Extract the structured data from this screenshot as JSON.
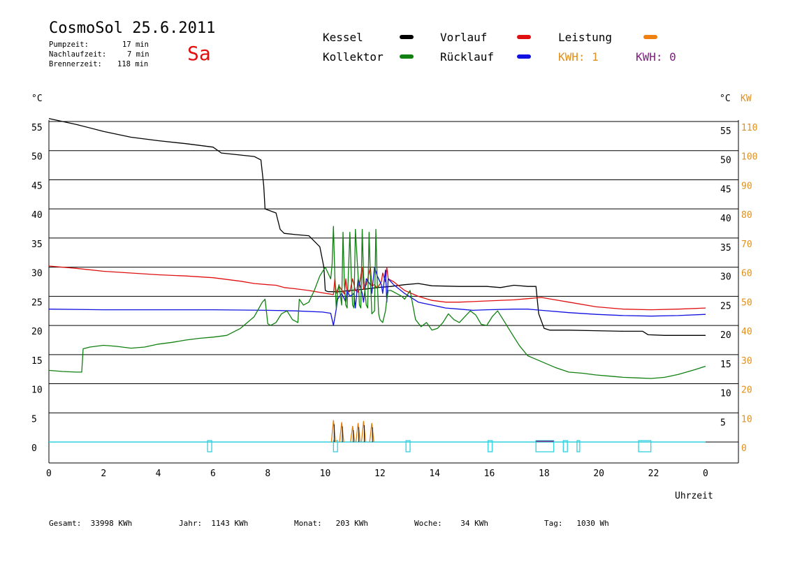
{
  "header": {
    "title": "CosmoSol 25.6.2011",
    "day": "Sa",
    "info": [
      {
        "label": "Pumpzeit:",
        "value": "17 min"
      },
      {
        "label": "Nachlaufzeit:",
        "value": "7 min"
      },
      {
        "label": "Brennerzeit:",
        "value": "118 min"
      }
    ]
  },
  "legend": {
    "kessel": {
      "label": "Kessel",
      "color": "#000000"
    },
    "vorlauf": {
      "label": "Vorlauf",
      "color": "#e01010"
    },
    "leistung": {
      "label": "Leistung",
      "color": "#f08010"
    },
    "kollektor": {
      "label": "Kollektor",
      "color": "#108010"
    },
    "ruecklauf": {
      "label": "Rücklauf",
      "color": "#1010e0"
    },
    "kwh1": {
      "label": "KWH: 1",
      "color": "#e09020"
    },
    "kwh2": {
      "label": "KWH: 0",
      "color": "#802080"
    }
  },
  "footer": {
    "gesamt": "Gesamt:  33998 KWh",
    "jahr": "Jahr:  1143 KWh",
    "monat": "Monat:   203 KWh",
    "woche": "Woche:    34 KWh",
    "tag": "Tag:   1030 Wh"
  },
  "chart_data": {
    "type": "line",
    "ylabel_left": "°C",
    "ylabel_right_c": "°C",
    "ylabel_right_kw": "KW",
    "xlabel": "Uhrzeit",
    "xlim": [
      0,
      24
    ],
    "ylim": [
      -3.5,
      55
    ],
    "x_ticks": [
      "0",
      "2",
      "4",
      "6",
      "8",
      "10",
      "12",
      "14",
      "16",
      "18",
      "20",
      "22",
      "0"
    ],
    "y_ticks_left": [
      0,
      5,
      10,
      15,
      20,
      25,
      30,
      35,
      40,
      45,
      50,
      55
    ],
    "y_ticks_right_c": [
      5,
      10,
      15,
      20,
      25,
      30,
      35,
      40,
      45,
      50,
      55
    ],
    "y_ticks_right_kw": [
      0,
      10,
      20,
      30,
      40,
      50,
      60,
      70,
      80,
      90,
      100,
      110
    ],
    "grid": true,
    "series": [
      {
        "name": "Kessel",
        "color": "#000000",
        "x": [
          0,
          1,
          2,
          3,
          4,
          5,
          6,
          6.3,
          7.5,
          7.75,
          7.85,
          7.9,
          8.3,
          8.45,
          8.6,
          9.0,
          9.5,
          9.9,
          10.05,
          10.1,
          10.2,
          10.4,
          10.6,
          11.0,
          11.5,
          12.0,
          12.5,
          13.0,
          13.5,
          14.0,
          15.0,
          16.0,
          16.5,
          17.0,
          17.5,
          17.8,
          17.9,
          18.1,
          18.3,
          19.0,
          20.0,
          21.0,
          21.7,
          21.9,
          22.5,
          23.0,
          24.0
        ],
        "y": [
          55.5,
          54.5,
          53.3,
          52.3,
          51.7,
          51.2,
          50.6,
          49.6,
          49.0,
          48.4,
          44,
          40,
          39.3,
          36.5,
          35.8,
          35.6,
          35.4,
          33.5,
          30,
          26,
          25.8,
          25.8,
          25.8,
          26.0,
          26.2,
          26.5,
          26.7,
          27.0,
          27.2,
          26.8,
          26.7,
          26.7,
          26.5,
          26.9,
          26.7,
          26.7,
          22,
          19.5,
          19.2,
          19.2,
          19.1,
          19.0,
          19.0,
          18.4,
          18.3,
          18.3,
          18.3
        ]
      },
      {
        "name": "Vorlauf",
        "color": "#e01010",
        "x": [
          0,
          1,
          2,
          3,
          4,
          5,
          6,
          7,
          7.5,
          8,
          8.3,
          8.6,
          9,
          9.5,
          10,
          10.4,
          10.45,
          10.5,
          10.6,
          10.8,
          10.85,
          10.9,
          11.0,
          11.1,
          11.2,
          11.3,
          11.45,
          11.5,
          11.6,
          11.75,
          11.8,
          11.9,
          12.0,
          12.15,
          12.2,
          12.3,
          12.35,
          12.4,
          12.6,
          13.0,
          13.5,
          14.0,
          14.5,
          15.0,
          15.5,
          16.0,
          17.0,
          17.5,
          18.0,
          18.5,
          19.0,
          20.0,
          21.0,
          22.0,
          23.0,
          24.0
        ],
        "y": [
          30.2,
          29.8,
          29.3,
          29.0,
          28.7,
          28.5,
          28.2,
          27.6,
          27.2,
          27.0,
          26.9,
          26.5,
          26.3,
          26.0,
          25.6,
          25.3,
          28,
          25.5,
          26.8,
          25.4,
          28,
          25.8,
          25.8,
          28,
          26.0,
          25.7,
          30,
          26.2,
          27,
          30,
          26.8,
          27,
          26.4,
          27.5,
          29,
          27.5,
          30,
          28,
          27.5,
          26.0,
          25.0,
          24.3,
          24.0,
          24.0,
          24.1,
          24.2,
          24.4,
          24.6,
          24.8,
          24.4,
          24.0,
          23.2,
          22.8,
          22.7,
          22.8,
          23.0
        ]
      },
      {
        "name": "Rücklauf",
        "color": "#1010e0",
        "x": [
          0,
          2,
          4,
          6,
          8,
          9,
          10,
          10.3,
          10.35,
          10.4,
          10.5,
          10.55,
          10.7,
          10.85,
          10.9,
          11.0,
          11.15,
          11.2,
          11.3,
          11.45,
          11.5,
          11.6,
          11.75,
          11.8,
          11.9,
          12.0,
          12.15,
          12.2,
          12.3,
          12.35,
          12.4,
          12.6,
          13.0,
          13.5,
          14.0,
          14.5,
          15.0,
          15.5,
          16.0,
          17.0,
          17.5,
          18.0,
          19.0,
          20.0,
          21.0,
          22.0,
          23.0,
          24.0
        ],
        "y": [
          22.8,
          22.7,
          22.7,
          22.7,
          22.6,
          22.5,
          22.3,
          22.1,
          21.0,
          20.0,
          22.8,
          24.5,
          25.5,
          24.0,
          26.0,
          25.0,
          25.5,
          23.0,
          28.0,
          25.5,
          24.0,
          28.0,
          27.0,
          25.5,
          30.0,
          28.5,
          27.0,
          25.5,
          29.5,
          24.0,
          28.0,
          27.0,
          25.5,
          24.0,
          23.5,
          23.0,
          22.8,
          22.6,
          22.7,
          22.8,
          22.8,
          22.6,
          22.2,
          21.9,
          21.7,
          21.6,
          21.7,
          21.9
        ]
      },
      {
        "name": "Kollektor",
        "color": "#108010",
        "x": [
          0,
          0.5,
          1.0,
          1.2,
          1.25,
          1.5,
          2.0,
          2.5,
          3.0,
          3.5,
          4.0,
          4.5,
          5.0,
          5.5,
          6.0,
          6.5,
          7.0,
          7.5,
          7.8,
          7.9,
          8.0,
          8.1,
          8.3,
          8.5,
          8.7,
          8.9,
          9.1,
          9.15,
          9.3,
          9.5,
          9.7,
          9.9,
          10.1,
          10.2,
          10.3,
          10.35,
          10.4,
          10.45,
          10.5,
          10.55,
          10.6,
          10.7,
          10.75,
          10.8,
          10.85,
          10.9,
          11.0,
          11.05,
          11.1,
          11.15,
          11.2,
          11.3,
          11.35,
          11.4,
          11.45,
          11.5,
          11.6,
          11.65,
          11.7,
          11.75,
          11.8,
          11.9,
          11.95,
          12.0,
          12.05,
          12.1,
          12.2,
          12.3,
          12.35,
          12.4,
          12.5,
          12.7,
          12.9,
          13.0,
          13.2,
          13.4,
          13.6,
          13.8,
          14.0,
          14.2,
          14.4,
          14.6,
          14.8,
          15.0,
          15.2,
          15.4,
          15.6,
          15.8,
          16.0,
          16.2,
          16.4,
          16.6,
          16.8,
          17.0,
          17.2,
          17.5,
          18.0,
          18.5,
          19.0,
          19.5,
          20.0,
          20.5,
          21.0,
          21.5,
          22.0,
          22.5,
          23.0,
          23.3,
          23.6,
          24.0
        ],
        "y": [
          12.3,
          12.1,
          12.0,
          12.0,
          16.0,
          16.3,
          16.6,
          16.4,
          16.1,
          16.3,
          16.8,
          17.1,
          17.5,
          17.8,
          18.0,
          18.3,
          19.5,
          21.5,
          24.0,
          24.5,
          20.3,
          20.0,
          20.5,
          22.0,
          22.5,
          21.0,
          20.5,
          24.5,
          23.5,
          24.0,
          26.0,
          28.5,
          30.0,
          29.0,
          28.0,
          30.5,
          37.0,
          28.5,
          23.0,
          25.5,
          27.0,
          23.5,
          36.0,
          27.0,
          23.5,
          23.0,
          36.0,
          28.5,
          23.5,
          23.0,
          36.5,
          28.5,
          23.5,
          23.0,
          36.5,
          28.5,
          23.5,
          23.0,
          36.0,
          28.5,
          22.0,
          22.5,
          36.5,
          27.5,
          22.0,
          21.0,
          20.5,
          22.5,
          24.5,
          26.0,
          26.0,
          25.5,
          25.0,
          24.5,
          26.0,
          21.0,
          19.8,
          20.5,
          19.2,
          19.5,
          20.5,
          22.0,
          21.0,
          20.5,
          21.5,
          22.5,
          21.8,
          20.2,
          20.0,
          21.5,
          22.5,
          21.0,
          19.5,
          18.0,
          16.5,
          14.8,
          13.8,
          12.8,
          12.0,
          11.8,
          11.5,
          11.3,
          11.1,
          11.0,
          10.9,
          11.1,
          11.6,
          12.0,
          12.4,
          13.0
        ]
      }
    ],
    "power_spikes": {
      "name": "Leistung",
      "x": [
        10.4,
        10.7,
        11.1,
        11.3,
        11.5,
        11.8
      ],
      "kw": [
        7.5,
        6.8,
        5.5,
        6.5,
        7.2,
        6.5
      ]
    },
    "pump_on_periods": [
      [
        5.8,
        5.95
      ],
      [
        10.4,
        10.55
      ],
      [
        13.05,
        13.2
      ],
      [
        16.05,
        16.2
      ],
      [
        17.8,
        18.45
      ],
      [
        18.8,
        18.95
      ],
      [
        19.3,
        19.4
      ],
      [
        21.55,
        22.0
      ]
    ],
    "burner_on_periods": [
      [
        17.8,
        18.45
      ]
    ]
  }
}
